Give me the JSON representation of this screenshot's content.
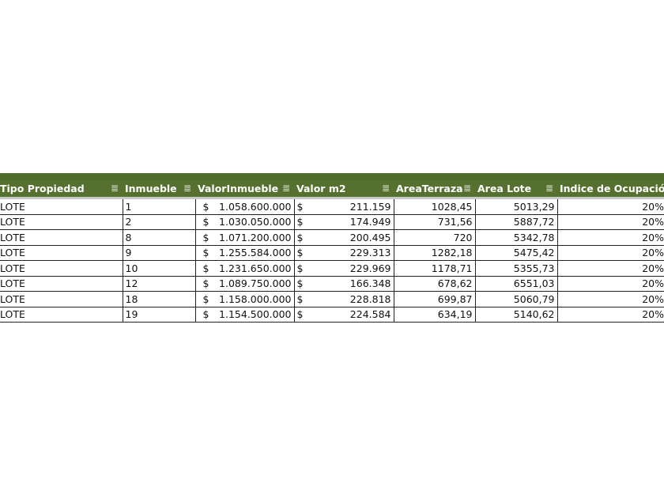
{
  "table": {
    "columns": [
      "Tipo Propiedad",
      "Inmueble",
      "ValorInmueble",
      "Valor m2",
      "AreaTerraza",
      "Area Lote",
      "Indice de Ocupación"
    ],
    "currency_symbol": "$",
    "rows": [
      [
        "LOTE",
        "1",
        "1.058.600.000",
        "211.159",
        "1028,45",
        "5013,29",
        "20%"
      ],
      [
        "LOTE",
        "2",
        "1.030.050.000",
        "174.949",
        "731,56",
        "5887,72",
        "20%"
      ],
      [
        "LOTE",
        "8",
        "1.071.200.000",
        "200.495",
        "720",
        "5342,78",
        "20%"
      ],
      [
        "LOTE",
        "9",
        "1.255.584.000",
        "229.313",
        "1282,18",
        "5475,42",
        "20%"
      ],
      [
        "LOTE",
        "10",
        "1.231.650.000",
        "229.969",
        "1178,71",
        "5355,73",
        "20%"
      ],
      [
        "LOTE",
        "12",
        "1.089.750.000",
        "166.348",
        "678,62",
        "6551,03",
        "20%"
      ],
      [
        "LOTE",
        "18",
        "1.158.000.000",
        "228.818",
        "699,87",
        "5060,79",
        "20%"
      ],
      [
        "LOTE",
        "19",
        "1.154.500.000",
        "224.584",
        "634,19",
        "5140,62",
        "20%"
      ]
    ]
  },
  "colors": {
    "header_bg": "#55702f",
    "header_text": "#ffffff"
  },
  "icons": {
    "filter": "filter-icon"
  }
}
